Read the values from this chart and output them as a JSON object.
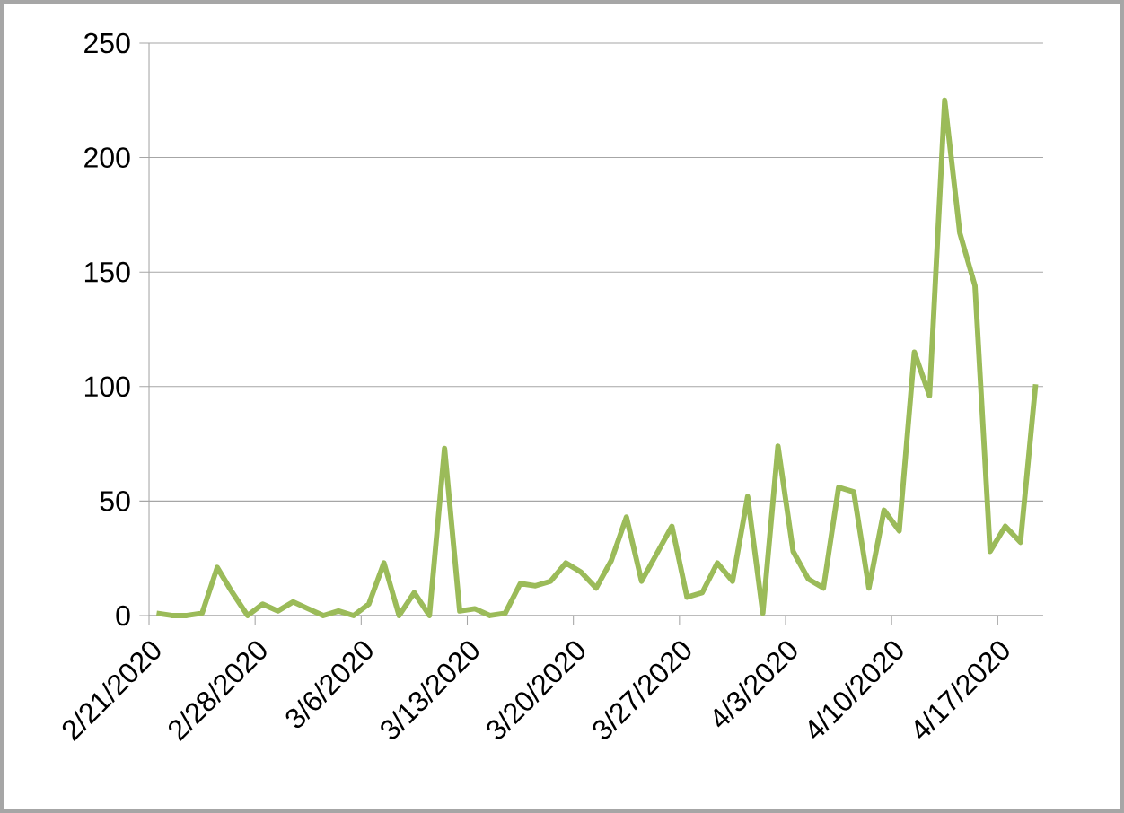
{
  "chart_data": {
    "type": "line",
    "color": "#9bbb59",
    "x": [
      "2020-02-21T12:00",
      "2020-02-22T12:00",
      "2020-02-23T12:00",
      "2020-02-24T12:00",
      "2020-02-25T12:00",
      "2020-02-26T12:00",
      "2020-02-27T12:00",
      "2020-02-28T12:00",
      "2020-02-29T12:00",
      "2020-03-01T12:00",
      "2020-03-02T12:00",
      "2020-03-03T12:00",
      "2020-03-04T12:00",
      "2020-03-05T12:00",
      "2020-03-06T12:00",
      "2020-03-07T12:00",
      "2020-03-08T12:00",
      "2020-03-09T12:00",
      "2020-03-10T12:00",
      "2020-03-11T12:00",
      "2020-03-12T12:00",
      "2020-03-13T12:00",
      "2020-03-14T12:00",
      "2020-03-15T12:00",
      "2020-03-16T12:00",
      "2020-03-17T12:00",
      "2020-03-18T12:00",
      "2020-03-19T12:00",
      "2020-03-20T12:00",
      "2020-03-21T12:00",
      "2020-03-22T12:00",
      "2020-03-23T12:00",
      "2020-03-24T12:00",
      "2020-03-25T12:00",
      "2020-03-26T12:00",
      "2020-03-27T12:00",
      "2020-03-28T12:00",
      "2020-03-29T12:00",
      "2020-03-30T12:00",
      "2020-03-31T12:00",
      "2020-04-01T12:00",
      "2020-04-02T12:00",
      "2020-04-03T12:00",
      "2020-04-04T12:00",
      "2020-04-05T12:00",
      "2020-04-06T12:00",
      "2020-04-07T12:00",
      "2020-04-08T12:00",
      "2020-04-09T12:00",
      "2020-04-10T12:00",
      "2020-04-11T12:00",
      "2020-04-12T12:00",
      "2020-04-13T12:00",
      "2020-04-14T12:00",
      "2020-04-15T12:00",
      "2020-04-16T12:00",
      "2020-04-17T12:00",
      "2020-04-18T12:00",
      "2020-04-19T12:00"
    ],
    "values": [
      1,
      0,
      0,
      1,
      21,
      10,
      0,
      5,
      2,
      6,
      3,
      0,
      2,
      0,
      5,
      23,
      0,
      10,
      0,
      73,
      2,
      3,
      0,
      1,
      14,
      13,
      15,
      23,
      19,
      12,
      24,
      43,
      15,
      27,
      39,
      8,
      10,
      23,
      15,
      52,
      1,
      74,
      28,
      16,
      12,
      56,
      54,
      12,
      46,
      37,
      115,
      96,
      225,
      167,
      144,
      28,
      39,
      32,
      101
    ],
    "xlim": [
      "2020-02-21",
      "2020-04-20"
    ],
    "xticks": [
      {
        "value": "2020-02-21",
        "label": "2/21/2020"
      },
      {
        "value": "2020-02-28",
        "label": "2/28/2020"
      },
      {
        "value": "2020-03-06",
        "label": "3/6/2020"
      },
      {
        "value": "2020-03-13",
        "label": "3/13/2020"
      },
      {
        "value": "2020-03-20",
        "label": "3/20/2020"
      },
      {
        "value": "2020-03-27",
        "label": "3/27/2020"
      },
      {
        "value": "2020-04-03",
        "label": "4/3/2020"
      },
      {
        "value": "2020-04-10",
        "label": "4/10/2020"
      },
      {
        "value": "2020-04-17",
        "label": "4/17/2020"
      }
    ],
    "ylim": [
      0,
      250
    ],
    "yticks": [
      0,
      50,
      100,
      150,
      200,
      250
    ],
    "grid": "y",
    "marker": "none",
    "line_style": "solid"
  }
}
